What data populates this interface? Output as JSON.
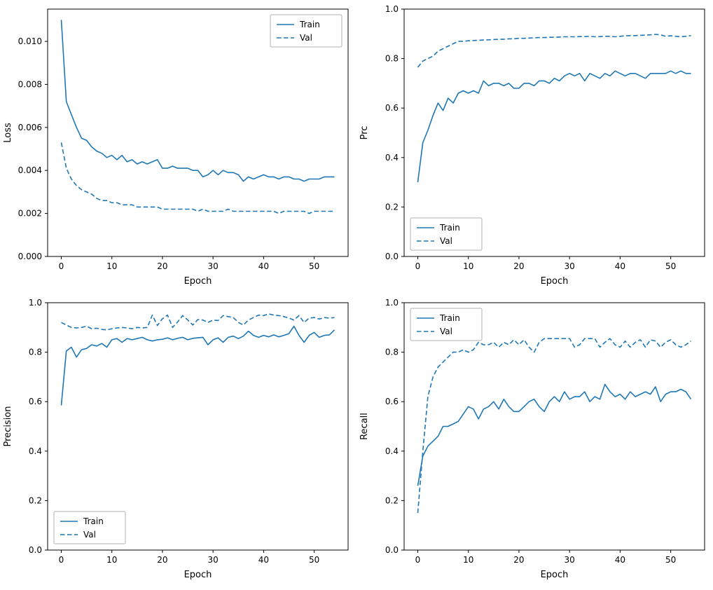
{
  "figure": {
    "background": "#ffffff",
    "line_color": "#1f77b4",
    "axis_color": "#000000",
    "legend_border_color": "#b0b0b0",
    "train_label": "Train",
    "val_label": "Val"
  },
  "chart_data": [
    {
      "type": "line",
      "title": "",
      "xlabel": "Epoch",
      "ylabel": "Loss",
      "xlim": [
        -2.7,
        56.7
      ],
      "ylim": [
        0,
        0.0115
      ],
      "xticks": [
        0,
        10,
        20,
        30,
        40,
        50
      ],
      "xtick_labels": [
        "0",
        "10",
        "20",
        "30",
        "40",
        "50"
      ],
      "yticks": [
        0.0,
        0.002,
        0.004,
        0.006,
        0.008,
        0.01
      ],
      "ytick_labels": [
        "0.000",
        "0.002",
        "0.004",
        "0.006",
        "0.008",
        "0.010"
      ],
      "grid": false,
      "legend": "upper-right",
      "x": [
        0,
        1,
        2,
        3,
        4,
        5,
        6,
        7,
        8,
        9,
        10,
        11,
        12,
        13,
        14,
        15,
        16,
        17,
        18,
        19,
        20,
        21,
        22,
        23,
        24,
        25,
        26,
        27,
        28,
        29,
        30,
        31,
        32,
        33,
        34,
        35,
        36,
        37,
        38,
        39,
        40,
        41,
        42,
        43,
        44,
        45,
        46,
        47,
        48,
        49,
        50,
        51,
        52,
        53,
        54
      ],
      "series": [
        {
          "name": "Train",
          "style": "solid",
          "values": [
            0.011,
            0.0072,
            0.0066,
            0.006,
            0.0055,
            0.0054,
            0.0051,
            0.0049,
            0.0048,
            0.0046,
            0.0047,
            0.0045,
            0.0047,
            0.0044,
            0.0045,
            0.0043,
            0.0044,
            0.0043,
            0.0044,
            0.0045,
            0.0041,
            0.0041,
            0.0042,
            0.0041,
            0.0041,
            0.0041,
            0.004,
            0.004,
            0.0037,
            0.0038,
            0.004,
            0.0038,
            0.004,
            0.0039,
            0.0039,
            0.0038,
            0.0035,
            0.0037,
            0.0036,
            0.0037,
            0.0038,
            0.0037,
            0.0037,
            0.0036,
            0.0037,
            0.0037,
            0.0036,
            0.0036,
            0.0035,
            0.0036,
            0.0036,
            0.0036,
            0.0037,
            0.0037,
            0.0037
          ]
        },
        {
          "name": "Val",
          "style": "dashed",
          "values": [
            0.0053,
            0.0041,
            0.0036,
            0.0033,
            0.0031,
            0.003,
            0.0029,
            0.0027,
            0.0026,
            0.0026,
            0.0025,
            0.0025,
            0.0024,
            0.0024,
            0.0024,
            0.0023,
            0.0023,
            0.0023,
            0.0023,
            0.0023,
            0.0022,
            0.0022,
            0.0022,
            0.0022,
            0.0022,
            0.0022,
            0.0022,
            0.0021,
            0.0022,
            0.0021,
            0.0021,
            0.0021,
            0.0021,
            0.0022,
            0.0021,
            0.0021,
            0.0021,
            0.0021,
            0.0021,
            0.0021,
            0.0021,
            0.0021,
            0.0021,
            0.002,
            0.0021,
            0.0021,
            0.0021,
            0.0021,
            0.0021,
            0.002,
            0.0021,
            0.0021,
            0.0021,
            0.0021,
            0.0021
          ]
        }
      ]
    },
    {
      "type": "line",
      "title": "",
      "xlabel": "Epoch",
      "ylabel": "Prc",
      "xlim": [
        -2.7,
        56.7
      ],
      "ylim": [
        0,
        1.0
      ],
      "xticks": [
        0,
        10,
        20,
        30,
        40,
        50
      ],
      "xtick_labels": [
        "0",
        "10",
        "20",
        "30",
        "40",
        "50"
      ],
      "yticks": [
        0.0,
        0.2,
        0.4,
        0.6,
        0.8,
        1.0
      ],
      "ytick_labels": [
        "0.0",
        "0.2",
        "0.4",
        "0.6",
        "0.8",
        "1.0"
      ],
      "grid": false,
      "legend": "lower-left",
      "x": [
        0,
        1,
        2,
        3,
        4,
        5,
        6,
        7,
        8,
        9,
        10,
        11,
        12,
        13,
        14,
        15,
        16,
        17,
        18,
        19,
        20,
        21,
        22,
        23,
        24,
        25,
        26,
        27,
        28,
        29,
        30,
        31,
        32,
        33,
        34,
        35,
        36,
        37,
        38,
        39,
        40,
        41,
        42,
        43,
        44,
        45,
        46,
        47,
        48,
        49,
        50,
        51,
        52,
        53,
        54
      ],
      "series": [
        {
          "name": "Train",
          "style": "solid",
          "values": [
            0.3,
            0.46,
            0.51,
            0.57,
            0.62,
            0.59,
            0.64,
            0.62,
            0.66,
            0.67,
            0.66,
            0.67,
            0.66,
            0.71,
            0.69,
            0.7,
            0.7,
            0.69,
            0.7,
            0.68,
            0.68,
            0.7,
            0.7,
            0.69,
            0.71,
            0.71,
            0.7,
            0.72,
            0.71,
            0.73,
            0.74,
            0.73,
            0.74,
            0.71,
            0.74,
            0.73,
            0.72,
            0.74,
            0.73,
            0.75,
            0.74,
            0.73,
            0.74,
            0.74,
            0.73,
            0.72,
            0.74,
            0.74,
            0.74,
            0.74,
            0.75,
            0.74,
            0.75,
            0.74,
            0.74
          ]
        },
        {
          "name": "Val",
          "style": "dashed",
          "values": [
            0.765,
            0.79,
            0.8,
            0.81,
            0.83,
            0.84,
            0.85,
            0.86,
            0.87,
            0.87,
            0.872,
            0.873,
            0.874,
            0.875,
            0.876,
            0.877,
            0.878,
            0.878,
            0.88,
            0.88,
            0.882,
            0.882,
            0.883,
            0.884,
            0.885,
            0.885,
            0.886,
            0.886,
            0.887,
            0.888,
            0.888,
            0.888,
            0.889,
            0.889,
            0.89,
            0.888,
            0.889,
            0.89,
            0.89,
            0.888,
            0.89,
            0.892,
            0.893,
            0.893,
            0.894,
            0.895,
            0.896,
            0.898,
            0.896,
            0.89,
            0.892,
            0.89,
            0.888,
            0.89,
            0.893
          ]
        }
      ]
    },
    {
      "type": "line",
      "title": "",
      "xlabel": "Epoch",
      "ylabel": "Precision",
      "xlim": [
        -2.7,
        56.7
      ],
      "ylim": [
        0,
        1.0
      ],
      "xticks": [
        0,
        10,
        20,
        30,
        40,
        50
      ],
      "xtick_labels": [
        "0",
        "10",
        "20",
        "30",
        "40",
        "50"
      ],
      "yticks": [
        0.0,
        0.2,
        0.4,
        0.6,
        0.8,
        1.0
      ],
      "ytick_labels": [
        "0.0",
        "0.2",
        "0.4",
        "0.6",
        "0.8",
        "1.0"
      ],
      "grid": false,
      "legend": "lower-left",
      "x": [
        0,
        1,
        2,
        3,
        4,
        5,
        6,
        7,
        8,
        9,
        10,
        11,
        12,
        13,
        14,
        15,
        16,
        17,
        18,
        19,
        20,
        21,
        22,
        23,
        24,
        25,
        26,
        27,
        28,
        29,
        30,
        31,
        32,
        33,
        34,
        35,
        36,
        37,
        38,
        39,
        40,
        41,
        42,
        43,
        44,
        45,
        46,
        47,
        48,
        49,
        50,
        51,
        52,
        53,
        54
      ],
      "series": [
        {
          "name": "Train",
          "style": "solid",
          "values": [
            0.585,
            0.805,
            0.82,
            0.78,
            0.81,
            0.815,
            0.83,
            0.825,
            0.835,
            0.82,
            0.85,
            0.855,
            0.84,
            0.855,
            0.85,
            0.855,
            0.86,
            0.85,
            0.845,
            0.85,
            0.852,
            0.858,
            0.85,
            0.856,
            0.86,
            0.85,
            0.856,
            0.858,
            0.86,
            0.83,
            0.85,
            0.858,
            0.84,
            0.86,
            0.865,
            0.855,
            0.865,
            0.885,
            0.868,
            0.86,
            0.868,
            0.862,
            0.87,
            0.862,
            0.868,
            0.875,
            0.905,
            0.868,
            0.84,
            0.868,
            0.88,
            0.86,
            0.868,
            0.87,
            0.89
          ]
        },
        {
          "name": "Val",
          "style": "dashed",
          "values": [
            0.92,
            0.91,
            0.9,
            0.898,
            0.9,
            0.905,
            0.895,
            0.897,
            0.892,
            0.89,
            0.895,
            0.898,
            0.9,
            0.898,
            0.895,
            0.9,
            0.898,
            0.9,
            0.95,
            0.908,
            0.935,
            0.95,
            0.9,
            0.922,
            0.948,
            0.93,
            0.91,
            0.932,
            0.93,
            0.92,
            0.93,
            0.928,
            0.948,
            0.944,
            0.94,
            0.92,
            0.91,
            0.93,
            0.94,
            0.95,
            0.948,
            0.955,
            0.95,
            0.948,
            0.944,
            0.938,
            0.93,
            0.948,
            0.92,
            0.938,
            0.94,
            0.934,
            0.94,
            0.938,
            0.94
          ]
        }
      ]
    },
    {
      "type": "line",
      "title": "",
      "xlabel": "Epoch",
      "ylabel": "Recall",
      "xlim": [
        -2.7,
        56.7
      ],
      "ylim": [
        0,
        1.0
      ],
      "xticks": [
        0,
        10,
        20,
        30,
        40,
        50
      ],
      "xtick_labels": [
        "0",
        "10",
        "20",
        "30",
        "40",
        "50"
      ],
      "yticks": [
        0.0,
        0.2,
        0.4,
        0.6,
        0.8,
        1.0
      ],
      "ytick_labels": [
        "0.0",
        "0.2",
        "0.4",
        "0.6",
        "0.8",
        "1.0"
      ],
      "grid": false,
      "legend": "upper-left",
      "x": [
        0,
        1,
        2,
        3,
        4,
        5,
        6,
        7,
        8,
        9,
        10,
        11,
        12,
        13,
        14,
        15,
        16,
        17,
        18,
        19,
        20,
        21,
        22,
        23,
        24,
        25,
        26,
        27,
        28,
        29,
        30,
        31,
        32,
        33,
        34,
        35,
        36,
        37,
        38,
        39,
        40,
        41,
        42,
        43,
        44,
        45,
        46,
        47,
        48,
        49,
        50,
        51,
        52,
        53,
        54
      ],
      "series": [
        {
          "name": "Train",
          "style": "solid",
          "values": [
            0.26,
            0.38,
            0.42,
            0.44,
            0.46,
            0.5,
            0.5,
            0.51,
            0.52,
            0.55,
            0.58,
            0.57,
            0.53,
            0.57,
            0.58,
            0.6,
            0.57,
            0.61,
            0.58,
            0.56,
            0.56,
            0.58,
            0.6,
            0.61,
            0.58,
            0.56,
            0.6,
            0.62,
            0.6,
            0.64,
            0.61,
            0.62,
            0.62,
            0.64,
            0.6,
            0.62,
            0.61,
            0.67,
            0.64,
            0.62,
            0.63,
            0.61,
            0.64,
            0.62,
            0.63,
            0.64,
            0.63,
            0.66,
            0.6,
            0.63,
            0.64,
            0.64,
            0.65,
            0.64,
            0.61
          ]
        },
        {
          "name": "Val",
          "style": "dashed",
          "values": [
            0.15,
            0.4,
            0.62,
            0.7,
            0.74,
            0.76,
            0.78,
            0.8,
            0.8,
            0.81,
            0.8,
            0.81,
            0.84,
            0.83,
            0.83,
            0.84,
            0.82,
            0.84,
            0.83,
            0.85,
            0.83,
            0.85,
            0.82,
            0.8,
            0.84,
            0.855,
            0.855,
            0.855,
            0.855,
            0.855,
            0.855,
            0.82,
            0.83,
            0.855,
            0.855,
            0.855,
            0.82,
            0.84,
            0.855,
            0.83,
            0.82,
            0.845,
            0.82,
            0.84,
            0.85,
            0.82,
            0.85,
            0.845,
            0.82,
            0.84,
            0.85,
            0.83,
            0.82,
            0.83,
            0.845
          ]
        }
      ]
    }
  ]
}
